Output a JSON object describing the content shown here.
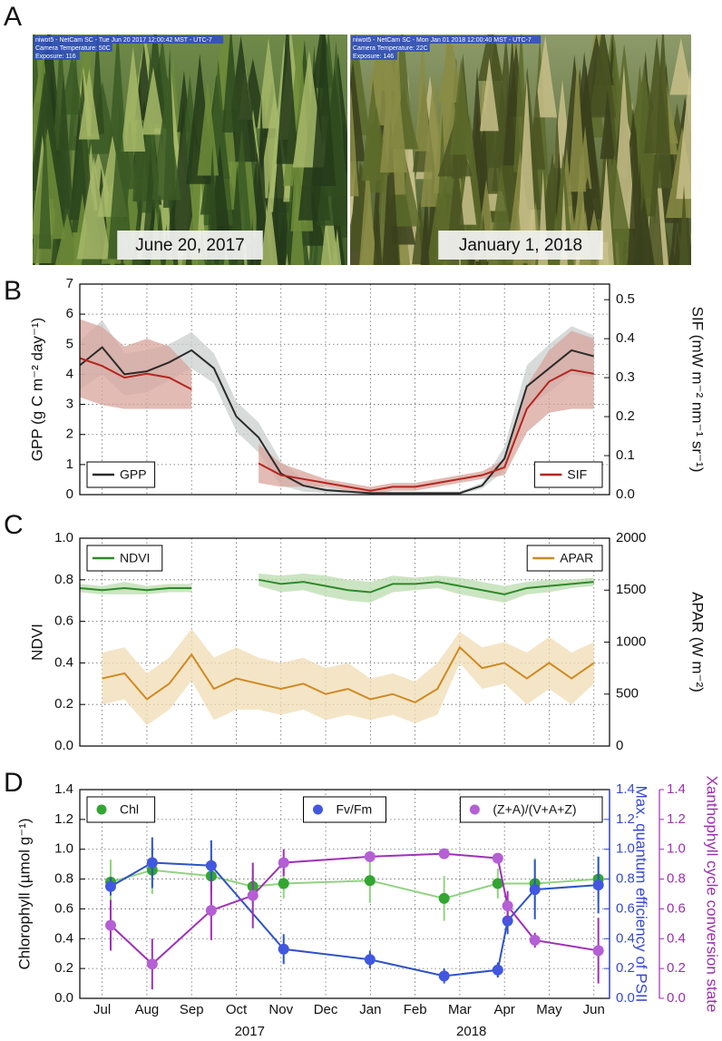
{
  "panel_labels": [
    "A",
    "B",
    "C",
    "D"
  ],
  "photos": [
    {
      "caption": "June 20, 2017",
      "overlay": [
        "niwot5 - NetCam SC - Tue Jun 20 2017 12:00:42 MST - UTC-7",
        "Camera Temperature: 50C",
        "Exposure: 116"
      ]
    },
    {
      "caption": "January 1, 2018",
      "overlay": [
        "niwot5 - NetCam SC - Mon Jan 01 2018 12:00:40 MST - UTC-7",
        "Camera Temperature: 22C",
        "Exposure: 146"
      ]
    }
  ],
  "chart_data": [
    {
      "type": "line",
      "error_style": "band",
      "grid": true,
      "x": [
        0,
        0.5,
        1,
        1.5,
        2,
        2.5,
        3,
        3.5,
        4,
        4.5,
        5,
        5.5,
        6,
        6.5,
        7,
        7.5,
        8,
        8.5,
        9,
        9.5,
        10,
        10.5,
        11,
        11.5
      ],
      "xlim": [
        0,
        11.85
      ],
      "xticks": [
        0.5,
        1.5,
        2.5,
        3.5,
        4.5,
        5.5,
        6.5,
        7.5,
        8.5,
        9.5,
        10.5,
        11.5
      ],
      "ylabel": "GPP (g C m⁻² day⁻¹)",
      "ylim": [
        0,
        7
      ],
      "yticks": [
        0,
        1,
        2,
        3,
        4,
        5,
        6,
        7
      ],
      "y2label": "SIF (mW m⁻² nm⁻¹ sr⁻¹)",
      "y2lim": [
        0,
        0.54
      ],
      "y2ticks": [
        {
          "value": 0,
          "label": "0.0"
        },
        0.1,
        0.2,
        0.3,
        0.4,
        0.5
      ],
      "series": [
        {
          "name": "GPP",
          "color": "#2b2b2b",
          "band_color": "#c9cfcc",
          "legend": "lower left",
          "axis": "y",
          "values": [
            4.3,
            4.9,
            4.0,
            4.1,
            4.4,
            4.8,
            4.2,
            2.6,
            1.9,
            0.7,
            0.3,
            0.15,
            0.1,
            0.05,
            0.05,
            0.05,
            0.05,
            0.05,
            0.3,
            1.2,
            3.6,
            4.2,
            4.8,
            4.6
          ],
          "errors": [
            0.8,
            0.9,
            0.7,
            0.7,
            0.6,
            0.6,
            0.5,
            0.5,
            0.5,
            0.4,
            0.2,
            0.1,
            0.05,
            0.05,
            0.05,
            0.05,
            0.05,
            0.05,
            0.1,
            0.4,
            0.7,
            0.8,
            0.8,
            0.7
          ]
        },
        {
          "name": "SIF",
          "color": "#b3261e",
          "band_color": "#d8a49c",
          "legend": "lower right",
          "axis": "y2",
          "values": [
            0.35,
            0.33,
            0.3,
            0.31,
            0.3,
            0.27,
            null,
            null,
            0.08,
            0.05,
            0.04,
            0.03,
            0.02,
            0.01,
            0.02,
            0.02,
            0.03,
            0.04,
            0.05,
            0.07,
            0.22,
            0.29,
            0.32,
            0.31
          ],
          "errors": [
            0.1,
            0.1,
            0.08,
            0.09,
            0.08,
            0.05,
            null,
            null,
            0.05,
            0.03,
            0.02,
            0.01,
            0.01,
            0.01,
            0.01,
            0.01,
            0.01,
            0.01,
            0.01,
            0.02,
            0.06,
            0.08,
            0.1,
            0.09
          ]
        }
      ]
    },
    {
      "type": "line",
      "error_style": "band",
      "grid": true,
      "x": [
        0,
        0.5,
        1,
        1.5,
        2,
        2.5,
        3,
        3.5,
        4,
        4.5,
        5,
        5.5,
        6,
        6.5,
        7,
        7.5,
        8,
        8.5,
        9,
        9.5,
        10,
        10.5,
        11,
        11.5
      ],
      "xlim": [
        0,
        11.85
      ],
      "xticks": [
        0.5,
        1.5,
        2.5,
        3.5,
        4.5,
        5.5,
        6.5,
        7.5,
        8.5,
        9.5,
        10.5,
        11.5
      ],
      "ylabel": "NDVI",
      "ylim": [
        0,
        1
      ],
      "yticks": [
        {
          "value": 0,
          "label": "0.0"
        },
        0.2,
        0.4,
        0.6,
        0.8,
        {
          "value": 1,
          "label": "1.0"
        }
      ],
      "y2label": "APAR (W m⁻²)",
      "y2lim": [
        0,
        2000
      ],
      "y2ticks": [
        0,
        500,
        1000,
        1500,
        2000
      ],
      "series": [
        {
          "name": "NDVI",
          "color": "#2e8a2a",
          "band_color": "#b9dcae",
          "legend": "upper left",
          "axis": "y",
          "values": [
            0.76,
            0.75,
            0.76,
            0.75,
            0.76,
            0.76,
            null,
            null,
            0.8,
            0.78,
            0.79,
            0.77,
            0.75,
            0.74,
            0.78,
            0.78,
            0.79,
            0.77,
            0.75,
            0.73,
            0.76,
            0.77,
            0.78,
            0.79
          ],
          "errors": [
            0.02,
            0.02,
            0.03,
            0.02,
            0.02,
            0.02,
            null,
            null,
            0.03,
            0.04,
            0.04,
            0.05,
            0.05,
            0.05,
            0.04,
            0.03,
            0.03,
            0.04,
            0.04,
            0.04,
            0.03,
            0.03,
            0.02,
            0.02
          ]
        },
        {
          "name": "APAR",
          "color": "#cf8a22",
          "band_color": "#f0dcb4",
          "legend": "upper right",
          "axis": "y2",
          "values": [
            null,
            650,
            700,
            450,
            600,
            880,
            550,
            650,
            600,
            550,
            600,
            500,
            550,
            450,
            500,
            420,
            550,
            950,
            750,
            800,
            650,
            800,
            650,
            800
          ],
          "errors": [
            null,
            250,
            250,
            250,
            250,
            250,
            300,
            300,
            250,
            250,
            250,
            250,
            250,
            200,
            200,
            200,
            250,
            150,
            200,
            200,
            250,
            250,
            250,
            200
          ]
        }
      ]
    },
    {
      "type": "line",
      "error_style": "bar",
      "markers": true,
      "connect_gaps": true,
      "grid": true,
      "x": [
        0.69,
        1.62,
        2.94,
        3.87,
        4.56,
        6.49,
        8.15,
        9.35,
        9.57,
        10.18,
        11.6
      ],
      "xlim": [
        0,
        11.85
      ],
      "xticks": [
        {
          "value": 0.5,
          "label": "Jul"
        },
        {
          "value": 1.5,
          "label": "Aug"
        },
        {
          "value": 2.5,
          "label": "Sep"
        },
        {
          "value": 3.5,
          "label": "Oct"
        },
        {
          "value": 4.5,
          "label": "Nov"
        },
        {
          "value": 5.5,
          "label": "Dec"
        },
        {
          "value": 6.5,
          "label": "Jan"
        },
        {
          "value": 7.5,
          "label": "Feb"
        },
        {
          "value": 8.5,
          "label": "Mar"
        },
        {
          "value": 9.5,
          "label": "Apr"
        },
        {
          "value": 10.5,
          "label": "May"
        },
        {
          "value": 11.5,
          "label": "Jun"
        }
      ],
      "x_year_ticks": [
        {
          "value": 3.8,
          "label": "2017"
        },
        {
          "value": 8.76,
          "label": "2018"
        }
      ],
      "ylabel": "Chlorophyll (µmol g⁻¹)",
      "ylim": [
        0,
        1.4
      ],
      "yticks": [
        {
          "value": 0,
          "label": "0.0"
        },
        0.2,
        0.4,
        0.6,
        0.8,
        {
          "value": 1,
          "label": "1.0"
        },
        1.2,
        1.4
      ],
      "y2label": "Max. quantum efficiency of PSII",
      "y2color": "#3548d6",
      "y2lim": [
        0,
        1.4
      ],
      "y2ticks": [
        {
          "value": 0,
          "label": "0.0"
        },
        0.2,
        0.4,
        0.6,
        0.8,
        {
          "value": 1,
          "label": "1.0"
        },
        1.2,
        1.4
      ],
      "y3label": "Xanthophyll cycle conversion state",
      "y3color": "#9b2fae",
      "y3lim": [
        0,
        1.4
      ],
      "y3ticks": [
        {
          "value": 0,
          "label": "0.0"
        },
        0.2,
        0.4,
        0.6,
        0.8,
        {
          "value": 1,
          "label": "1.0"
        },
        1.2,
        1.4
      ],
      "series": [
        {
          "name": "Chl",
          "color": "#33a532",
          "line_color": "#8fd47f",
          "legend": "upper left",
          "axis": "y",
          "values": [
            0.78,
            0.86,
            0.82,
            0.75,
            0.77,
            0.79,
            0.67,
            0.77,
            null,
            0.77,
            0.8
          ],
          "errors": [
            0.15,
            0.16,
            0.13,
            0.12,
            0.1,
            0.15,
            0.15,
            0.1,
            null,
            0.17,
            0.15
          ]
        },
        {
          "name": "Fv/Fm",
          "color": "#4257e0",
          "line_color": "#2f52c8",
          "legend": "upper center",
          "axis": "y2",
          "values": [
            0.75,
            0.91,
            0.89,
            null,
            0.33,
            0.26,
            0.15,
            0.19,
            0.52,
            0.73,
            0.76
          ],
          "errors": [
            0.06,
            0.17,
            0.17,
            null,
            0.1,
            0.06,
            0.05,
            0.05,
            0.09,
            0.2,
            0.19
          ]
        },
        {
          "name": "(Z+A)/(V+A+Z)",
          "color": "#b45fd4",
          "line_color": "#a030b8",
          "legend": "upper right",
          "axis": "y3",
          "values": [
            0.49,
            0.23,
            0.59,
            0.69,
            0.91,
            0.95,
            0.97,
            0.94,
            0.62,
            0.39,
            0.32
          ],
          "errors": [
            0.17,
            0.17,
            0.2,
            0.22,
            0.09,
            0.02,
            0.02,
            0.02,
            0.1,
            0.05,
            0.22
          ]
        }
      ]
    }
  ]
}
